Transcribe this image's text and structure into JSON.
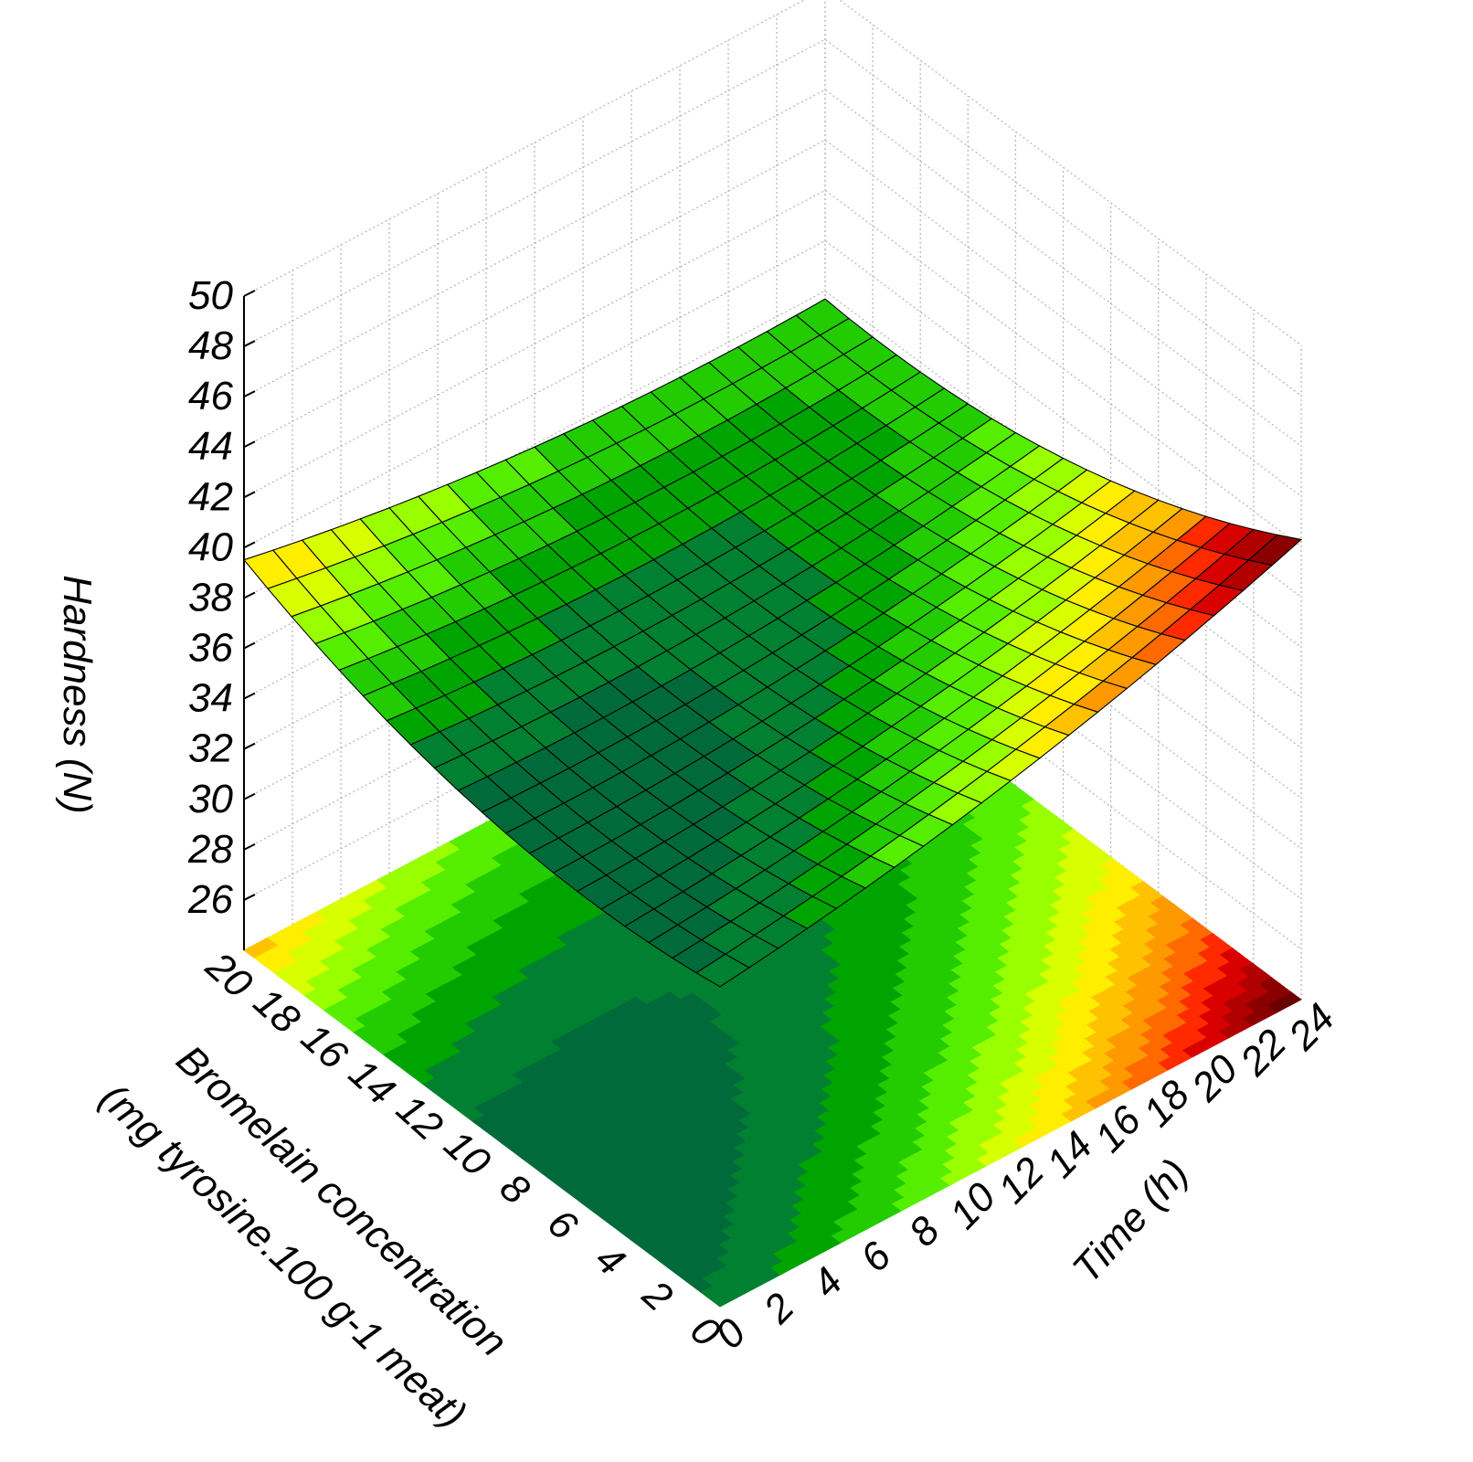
{
  "chart_data": {
    "type": "surface",
    "title": "",
    "xlabel": "Time (h)",
    "ylabel_line1": "Bromelain concentration",
    "ylabel_line2": "(mg tyrosine.100 g-1 meat)",
    "zlabel": "Hardness (N)",
    "x_ticks": [
      "0",
      "2",
      "4",
      "6",
      "8",
      "10",
      "12",
      "14",
      "16",
      "18",
      "20",
      "22",
      "24"
    ],
    "y_ticks": [
      "0",
      "2",
      "4",
      "6",
      "8",
      "10",
      "12",
      "14",
      "16",
      "18",
      "20"
    ],
    "z_ticks": [
      "26",
      "28",
      "30",
      "32",
      "34",
      "36",
      "38",
      "40",
      "42",
      "44",
      "46",
      "48",
      "50"
    ],
    "xlim": [
      0,
      24
    ],
    "ylim": [
      0,
      20
    ],
    "zlim": [
      24,
      50
    ],
    "grid": true,
    "surface_points": [
      {
        "time": 0,
        "bromelain": 20,
        "hardness": 39.8
      },
      {
        "time": 0,
        "bromelain": 10,
        "hardness": 36.0
      },
      {
        "time": 0,
        "bromelain": 0,
        "hardness": 37.0
      },
      {
        "time": 12,
        "bromelain": 10,
        "hardness": 36.8
      },
      {
        "time": 24,
        "bromelain": 20,
        "hardness": 37.4
      },
      {
        "time": 24,
        "bromelain": 10,
        "hardness": 39.0
      },
      {
        "time": 24,
        "bromelain": 0,
        "hardness": 42.0
      }
    ],
    "colormap": [
      "#6b0000",
      "#8a0000",
      "#b00000",
      "#d90000",
      "#ff2a00",
      "#ff6a00",
      "#ff9900",
      "#ffc200",
      "#ffee00",
      "#d8ff00",
      "#99ff00",
      "#55ee00",
      "#22cc00",
      "#00a400",
      "#008030",
      "#006a3a"
    ]
  }
}
